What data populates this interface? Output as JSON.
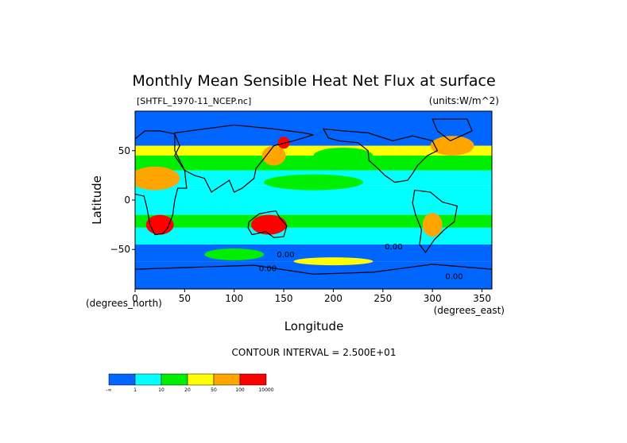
{
  "chart_data": {
    "type": "heatmap",
    "title": "Monthly Mean Sensible Heat Net Flux at surface",
    "file_label": "[SHTFL_1970-11_NCEP.nc]",
    "units_label": "(units:W/m^2)",
    "xlabel": "Longitude",
    "ylabel": "Latitude",
    "x_unit_label": "(degrees_east)",
    "y_unit_label": "(degrees_north)",
    "xlim": [
      0,
      360
    ],
    "ylim": [
      -90,
      90
    ],
    "x_ticks": [
      0,
      50,
      100,
      150,
      200,
      250,
      300,
      350
    ],
    "y_ticks": [
      50,
      0,
      -50
    ],
    "y_tick_labels": [
      "50",
      "0",
      "−50"
    ],
    "contour_interval_text": "CONTOUR INTERVAL = 2.500E+01",
    "inline_contour_labels": [
      "0.00",
      "0.00",
      "0.00",
      "0.00"
    ],
    "colorbar": {
      "labels": [
        "-∞",
        "1",
        "10",
        "20",
        "50",
        "100",
        "10000"
      ],
      "colors": [
        "#0066ff",
        "#00ffff",
        "#00ee00",
        "#ffff00",
        "#ffa500",
        "#ff0000"
      ]
    },
    "land_regions": [
      {
        "name": "north-america",
        "poly": [
          [
            190,
            72
          ],
          [
            210,
            70
          ],
          [
            235,
            68
          ],
          [
            260,
            60
          ],
          [
            280,
            65
          ],
          [
            300,
            60
          ],
          [
            305,
            50
          ],
          [
            295,
            45
          ],
          [
            285,
            35
          ],
          [
            280,
            27
          ],
          [
            275,
            20
          ],
          [
            262,
            18
          ],
          [
            252,
            25
          ],
          [
            245,
            32
          ],
          [
            236,
            40
          ],
          [
            235,
            50
          ],
          [
            225,
            58
          ],
          [
            205,
            60
          ],
          [
            195,
            63
          ]
        ]
      },
      {
        "name": "greenland",
        "poly": [
          [
            300,
            82
          ],
          [
            335,
            82
          ],
          [
            340,
            70
          ],
          [
            318,
            60
          ],
          [
            305,
            70
          ]
        ]
      },
      {
        "name": "south-america",
        "poly": [
          [
            282,
            10
          ],
          [
            298,
            8
          ],
          [
            310,
            -2
          ],
          [
            325,
            -6
          ],
          [
            322,
            -22
          ],
          [
            312,
            -30
          ],
          [
            302,
            -40
          ],
          [
            293,
            -53
          ],
          [
            287,
            -45
          ],
          [
            289,
            -30
          ],
          [
            283,
            -15
          ],
          [
            280,
            -3
          ]
        ]
      },
      {
        "name": "africa-europe",
        "poly": [
          [
            0,
            62
          ],
          [
            10,
            70
          ],
          [
            25,
            70
          ],
          [
            40,
            67
          ],
          [
            45,
            55
          ],
          [
            40,
            45
          ],
          [
            50,
            30
          ],
          [
            52,
            12
          ],
          [
            43,
            12
          ],
          [
            40,
            0
          ],
          [
            38,
            -15
          ],
          [
            33,
            -28
          ],
          [
            28,
            -34
          ],
          [
            20,
            -35
          ],
          [
            15,
            -25
          ],
          [
            12,
            -8
          ],
          [
            9,
            4
          ],
          [
            0,
            6
          ],
          [
            -5,
            10
          ],
          [
            0,
            30
          ],
          [
            0,
            45
          ]
        ]
      },
      {
        "name": "asia",
        "poly": [
          [
            40,
            68
          ],
          [
            70,
            72
          ],
          [
            100,
            76
          ],
          [
            140,
            72
          ],
          [
            170,
            68
          ],
          [
            180,
            66
          ],
          [
            160,
            60
          ],
          [
            140,
            55
          ],
          [
            130,
            42
          ],
          [
            122,
            32
          ],
          [
            120,
            22
          ],
          [
            108,
            12
          ],
          [
            100,
            8
          ],
          [
            95,
            20
          ],
          [
            80,
            10
          ],
          [
            77,
            8
          ],
          [
            70,
            22
          ],
          [
            60,
            25
          ],
          [
            50,
            30
          ],
          [
            45,
            40
          ],
          [
            40,
            50
          ]
        ]
      },
      {
        "name": "australia",
        "poly": [
          [
            115,
            -22
          ],
          [
            125,
            -14
          ],
          [
            135,
            -12
          ],
          [
            142,
            -11
          ],
          [
            146,
            -18
          ],
          [
            153,
            -26
          ],
          [
            150,
            -37
          ],
          [
            140,
            -38
          ],
          [
            132,
            -32
          ],
          [
            118,
            -35
          ],
          [
            114,
            -28
          ]
        ]
      },
      {
        "name": "antarctica",
        "poly": [
          [
            0,
            -70
          ],
          [
            60,
            -68
          ],
          [
            120,
            -66
          ],
          [
            180,
            -75
          ],
          [
            240,
            -73
          ],
          [
            300,
            -65
          ],
          [
            360,
            -70
          ],
          [
            360,
            -90
          ],
          [
            0,
            -90
          ]
        ]
      }
    ],
    "zones": [
      {
        "lat": [
          90,
          55
        ],
        "class": 0
      },
      {
        "lat": [
          55,
          45
        ],
        "class": 3
      },
      {
        "lat": [
          45,
          30
        ],
        "class": 2
      },
      {
        "lat": [
          30,
          15
        ],
        "class": 1
      },
      {
        "lat": [
          15,
          -15
        ],
        "class": 1
      },
      {
        "lat": [
          -15,
          -28
        ],
        "class": 2
      },
      {
        "lat": [
          -28,
          -45
        ],
        "class": 1
      },
      {
        "lat": [
          -45,
          -62
        ],
        "class": 0
      },
      {
        "lat": [
          -62,
          -90
        ],
        "class": 0
      }
    ],
    "patches": [
      {
        "lon": 25,
        "lat": -25,
        "rx": 14,
        "ry": 10,
        "class": 5
      },
      {
        "lon": 135,
        "lat": -25,
        "rx": 18,
        "ry": 10,
        "class": 5
      },
      {
        "lon": 20,
        "lat": 22,
        "rx": 25,
        "ry": 12,
        "class": 4
      },
      {
        "lon": 140,
        "lat": 45,
        "rx": 12,
        "ry": 10,
        "class": 4
      },
      {
        "lon": 150,
        "lat": 58,
        "rx": 6,
        "ry": 6,
        "class": 5
      },
      {
        "lon": 320,
        "lat": 55,
        "rx": 22,
        "ry": 10,
        "class": 4
      },
      {
        "lon": 300,
        "lat": -25,
        "rx": 10,
        "ry": 12,
        "class": 4
      },
      {
        "lon": 200,
        "lat": -62,
        "rx": 40,
        "ry": 4,
        "class": 3
      },
      {
        "lon": 180,
        "lat": 18,
        "rx": 50,
        "ry": 8,
        "class": 2
      },
      {
        "lon": 210,
        "lat": 45,
        "rx": 30,
        "ry": 8,
        "class": 2
      },
      {
        "lon": 100,
        "lat": -55,
        "rx": 30,
        "ry": 6,
        "class": 2
      }
    ]
  }
}
